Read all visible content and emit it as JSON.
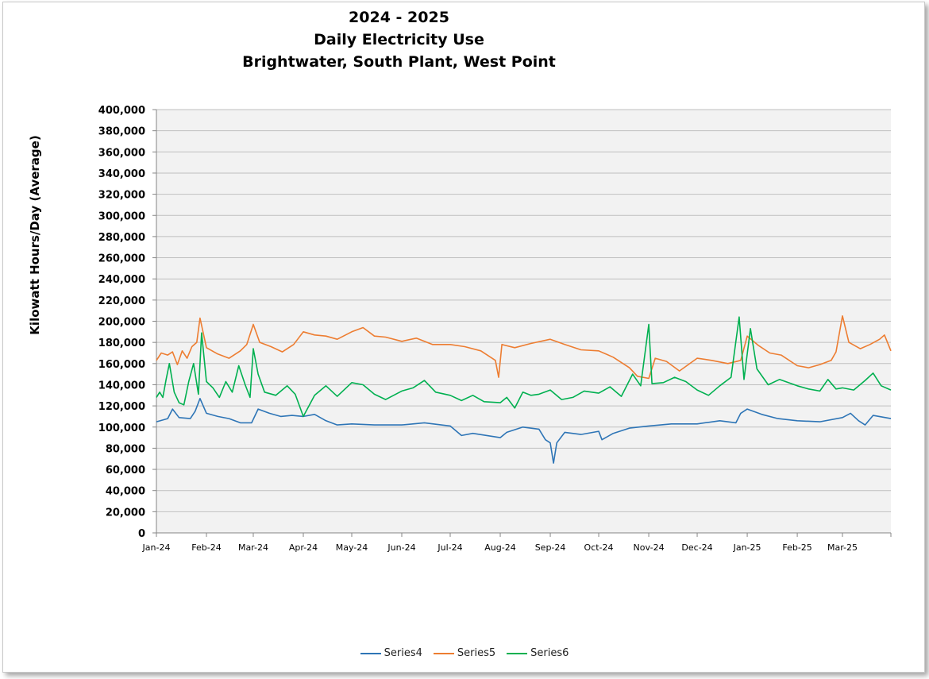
{
  "chart_data": {
    "type": "line",
    "title_lines": [
      "2024 - 2025",
      "Daily Electricity Use",
      "Brightwater, South Plant, West Point"
    ],
    "xlabel": "",
    "ylabel": "Kilowatt Hours/Day (Average)",
    "ylim": [
      0,
      400000
    ],
    "yticks": [
      "0",
      "20,000",
      "40,000",
      "60,000",
      "80,000",
      "100,000",
      "120,000",
      "140,000",
      "160,000",
      "180,000",
      "200,000",
      "220,000",
      "240,000",
      "260,000",
      "280,000",
      "300,000",
      "320,000",
      "340,000",
      "360,000",
      "380,000",
      "400,000"
    ],
    "xtick_labels": [
      "Jan-24",
      "Feb-24",
      "Mar-24",
      "Apr-24",
      "May-24",
      "Jun-24",
      "Jul-24",
      "Aug-24",
      "Sep-24",
      "Oct-24",
      "Nov-24",
      "Dec-24",
      "Jan-25",
      "Feb-25",
      "Mar-25"
    ],
    "xlim": [
      "2024-01-01",
      "2025-03-31"
    ],
    "grid": true,
    "legend_position": "bottom",
    "background": "#f2f2f2",
    "series": [
      {
        "name": "Series4",
        "color": "#2e75b6",
        "points": [
          [
            "2024-01-01",
            105000
          ],
          [
            "2024-01-08",
            108000
          ],
          [
            "2024-01-11",
            117000
          ],
          [
            "2024-01-15",
            109000
          ],
          [
            "2024-01-22",
            108000
          ],
          [
            "2024-01-25",
            115000
          ],
          [
            "2024-01-28",
            127000
          ],
          [
            "2024-02-01",
            113000
          ],
          [
            "2024-02-08",
            110000
          ],
          [
            "2024-02-15",
            108000
          ],
          [
            "2024-02-22",
            104000
          ],
          [
            "2024-02-29",
            104000
          ],
          [
            "2024-03-04",
            117000
          ],
          [
            "2024-03-11",
            113000
          ],
          [
            "2024-03-18",
            110000
          ],
          [
            "2024-03-25",
            111000
          ],
          [
            "2024-04-01",
            110000
          ],
          [
            "2024-04-08",
            112000
          ],
          [
            "2024-04-15",
            106000
          ],
          [
            "2024-04-22",
            102000
          ],
          [
            "2024-05-01",
            103000
          ],
          [
            "2024-05-15",
            102000
          ],
          [
            "2024-06-01",
            102000
          ],
          [
            "2024-06-15",
            104000
          ],
          [
            "2024-07-01",
            101000
          ],
          [
            "2024-07-08",
            92000
          ],
          [
            "2024-07-15",
            94000
          ],
          [
            "2024-08-01",
            90000
          ],
          [
            "2024-08-05",
            95000
          ],
          [
            "2024-08-15",
            100000
          ],
          [
            "2024-08-25",
            98000
          ],
          [
            "2024-08-29",
            88000
          ],
          [
            "2024-09-01",
            85000
          ],
          [
            "2024-09-03",
            66000
          ],
          [
            "2024-09-05",
            85000
          ],
          [
            "2024-09-10",
            95000
          ],
          [
            "2024-09-20",
            93000
          ],
          [
            "2024-10-01",
            96000
          ],
          [
            "2024-10-03",
            88000
          ],
          [
            "2024-10-10",
            94000
          ],
          [
            "2024-10-20",
            99000
          ],
          [
            "2024-11-01",
            101000
          ],
          [
            "2024-11-15",
            103000
          ],
          [
            "2024-12-01",
            103000
          ],
          [
            "2024-12-15",
            106000
          ],
          [
            "2024-12-25",
            104000
          ],
          [
            "2024-12-28",
            113000
          ],
          [
            "2025-01-01",
            117000
          ],
          [
            "2025-01-10",
            112000
          ],
          [
            "2025-01-20",
            108000
          ],
          [
            "2025-02-01",
            106000
          ],
          [
            "2025-02-15",
            105000
          ],
          [
            "2025-03-01",
            109000
          ],
          [
            "2025-03-06",
            113000
          ],
          [
            "2025-03-11",
            106000
          ],
          [
            "2025-03-15",
            102000
          ],
          [
            "2025-03-20",
            111000
          ],
          [
            "2025-03-31",
            108000
          ]
        ]
      },
      {
        "name": "Series5",
        "color": "#ed7d31",
        "points": [
          [
            "2024-01-01",
            163000
          ],
          [
            "2024-01-04",
            170000
          ],
          [
            "2024-01-08",
            168000
          ],
          [
            "2024-01-11",
            171000
          ],
          [
            "2024-01-14",
            159000
          ],
          [
            "2024-01-17",
            172000
          ],
          [
            "2024-01-20",
            165000
          ],
          [
            "2024-01-23",
            176000
          ],
          [
            "2024-01-26",
            180000
          ],
          [
            "2024-01-28",
            203000
          ],
          [
            "2024-02-01",
            175000
          ],
          [
            "2024-02-08",
            169000
          ],
          [
            "2024-02-15",
            165000
          ],
          [
            "2024-02-22",
            172000
          ],
          [
            "2024-02-26",
            178000
          ],
          [
            "2024-03-01",
            197000
          ],
          [
            "2024-03-05",
            180000
          ],
          [
            "2024-03-12",
            176000
          ],
          [
            "2024-03-19",
            171000
          ],
          [
            "2024-03-26",
            178000
          ],
          [
            "2024-04-01",
            190000
          ],
          [
            "2024-04-08",
            187000
          ],
          [
            "2024-04-15",
            186000
          ],
          [
            "2024-04-22",
            183000
          ],
          [
            "2024-05-01",
            190000
          ],
          [
            "2024-05-08",
            194000
          ],
          [
            "2024-05-15",
            186000
          ],
          [
            "2024-05-22",
            185000
          ],
          [
            "2024-06-01",
            181000
          ],
          [
            "2024-06-10",
            184000
          ],
          [
            "2024-06-20",
            178000
          ],
          [
            "2024-07-01",
            178000
          ],
          [
            "2024-07-10",
            176000
          ],
          [
            "2024-07-20",
            172000
          ],
          [
            "2024-07-29",
            163000
          ],
          [
            "2024-07-31",
            147000
          ],
          [
            "2024-08-02",
            178000
          ],
          [
            "2024-08-10",
            175000
          ],
          [
            "2024-08-20",
            179000
          ],
          [
            "2024-09-01",
            183000
          ],
          [
            "2024-09-10",
            178000
          ],
          [
            "2024-09-20",
            173000
          ],
          [
            "2024-10-01",
            172000
          ],
          [
            "2024-10-10",
            166000
          ],
          [
            "2024-10-20",
            156000
          ],
          [
            "2024-10-25",
            148000
          ],
          [
            "2024-11-01",
            146000
          ],
          [
            "2024-11-05",
            165000
          ],
          [
            "2024-11-12",
            162000
          ],
          [
            "2024-11-20",
            153000
          ],
          [
            "2024-12-01",
            165000
          ],
          [
            "2024-12-10",
            163000
          ],
          [
            "2024-12-20",
            160000
          ],
          [
            "2024-12-28",
            163000
          ],
          [
            "2025-01-01",
            186000
          ],
          [
            "2025-01-08",
            177000
          ],
          [
            "2025-01-15",
            170000
          ],
          [
            "2025-01-22",
            168000
          ],
          [
            "2025-02-01",
            158000
          ],
          [
            "2025-02-08",
            156000
          ],
          [
            "2025-02-15",
            159000
          ],
          [
            "2025-02-22",
            163000
          ],
          [
            "2025-02-25",
            171000
          ],
          [
            "2025-03-01",
            205000
          ],
          [
            "2025-03-05",
            180000
          ],
          [
            "2025-03-12",
            174000
          ],
          [
            "2025-03-18",
            178000
          ],
          [
            "2025-03-24",
            183000
          ],
          [
            "2025-03-27",
            187000
          ],
          [
            "2025-03-31",
            172000
          ]
        ]
      },
      {
        "name": "Series6",
        "color": "#00b050",
        "points": [
          [
            "2024-01-01",
            128000
          ],
          [
            "2024-01-03",
            133000
          ],
          [
            "2024-01-05",
            128000
          ],
          [
            "2024-01-07",
            145000
          ],
          [
            "2024-01-09",
            160000
          ],
          [
            "2024-01-12",
            133000
          ],
          [
            "2024-01-15",
            123000
          ],
          [
            "2024-01-18",
            121000
          ],
          [
            "2024-01-21",
            143000
          ],
          [
            "2024-01-24",
            160000
          ],
          [
            "2024-01-27",
            131000
          ],
          [
            "2024-01-29",
            189000
          ],
          [
            "2024-02-01",
            143000
          ],
          [
            "2024-02-05",
            137000
          ],
          [
            "2024-02-09",
            128000
          ],
          [
            "2024-02-13",
            143000
          ],
          [
            "2024-02-17",
            133000
          ],
          [
            "2024-02-21",
            158000
          ],
          [
            "2024-02-25",
            140000
          ],
          [
            "2024-02-28",
            128000
          ],
          [
            "2024-03-01",
            174000
          ],
          [
            "2024-03-04",
            150000
          ],
          [
            "2024-03-08",
            133000
          ],
          [
            "2024-03-15",
            130000
          ],
          [
            "2024-03-22",
            139000
          ],
          [
            "2024-03-27",
            131000
          ],
          [
            "2024-04-01",
            110000
          ],
          [
            "2024-04-08",
            130000
          ],
          [
            "2024-04-15",
            139000
          ],
          [
            "2024-04-22",
            129000
          ],
          [
            "2024-05-01",
            142000
          ],
          [
            "2024-05-08",
            140000
          ],
          [
            "2024-05-15",
            131000
          ],
          [
            "2024-05-22",
            126000
          ],
          [
            "2024-06-01",
            134000
          ],
          [
            "2024-06-08",
            137000
          ],
          [
            "2024-06-15",
            144000
          ],
          [
            "2024-06-22",
            133000
          ],
          [
            "2024-07-01",
            130000
          ],
          [
            "2024-07-08",
            125000
          ],
          [
            "2024-07-15",
            130000
          ],
          [
            "2024-07-22",
            124000
          ],
          [
            "2024-08-01",
            123000
          ],
          [
            "2024-08-05",
            128000
          ],
          [
            "2024-08-10",
            118000
          ],
          [
            "2024-08-15",
            133000
          ],
          [
            "2024-08-20",
            130000
          ],
          [
            "2024-08-25",
            131000
          ],
          [
            "2024-09-01",
            135000
          ],
          [
            "2024-09-08",
            126000
          ],
          [
            "2024-09-15",
            128000
          ],
          [
            "2024-09-22",
            134000
          ],
          [
            "2024-10-01",
            132000
          ],
          [
            "2024-10-08",
            138000
          ],
          [
            "2024-10-15",
            129000
          ],
          [
            "2024-10-22",
            150000
          ],
          [
            "2024-10-27",
            139000
          ],
          [
            "2024-11-01",
            197000
          ],
          [
            "2024-11-03",
            141000
          ],
          [
            "2024-11-10",
            142000
          ],
          [
            "2024-11-17",
            147000
          ],
          [
            "2024-11-24",
            143000
          ],
          [
            "2024-12-01",
            135000
          ],
          [
            "2024-12-08",
            130000
          ],
          [
            "2024-12-15",
            139000
          ],
          [
            "2024-12-22",
            147000
          ],
          [
            "2024-12-27",
            204000
          ],
          [
            "2024-12-30",
            145000
          ],
          [
            "2025-01-03",
            193000
          ],
          [
            "2025-01-07",
            155000
          ],
          [
            "2025-01-14",
            140000
          ],
          [
            "2025-01-21",
            145000
          ],
          [
            "2025-02-01",
            139000
          ],
          [
            "2025-02-08",
            136000
          ],
          [
            "2025-02-15",
            134000
          ],
          [
            "2025-02-20",
            145000
          ],
          [
            "2025-02-25",
            136000
          ],
          [
            "2025-03-01",
            137000
          ],
          [
            "2025-03-08",
            135000
          ],
          [
            "2025-03-15",
            144000
          ],
          [
            "2025-03-20",
            151000
          ],
          [
            "2025-03-25",
            139000
          ],
          [
            "2025-03-31",
            135000
          ]
        ]
      }
    ]
  }
}
